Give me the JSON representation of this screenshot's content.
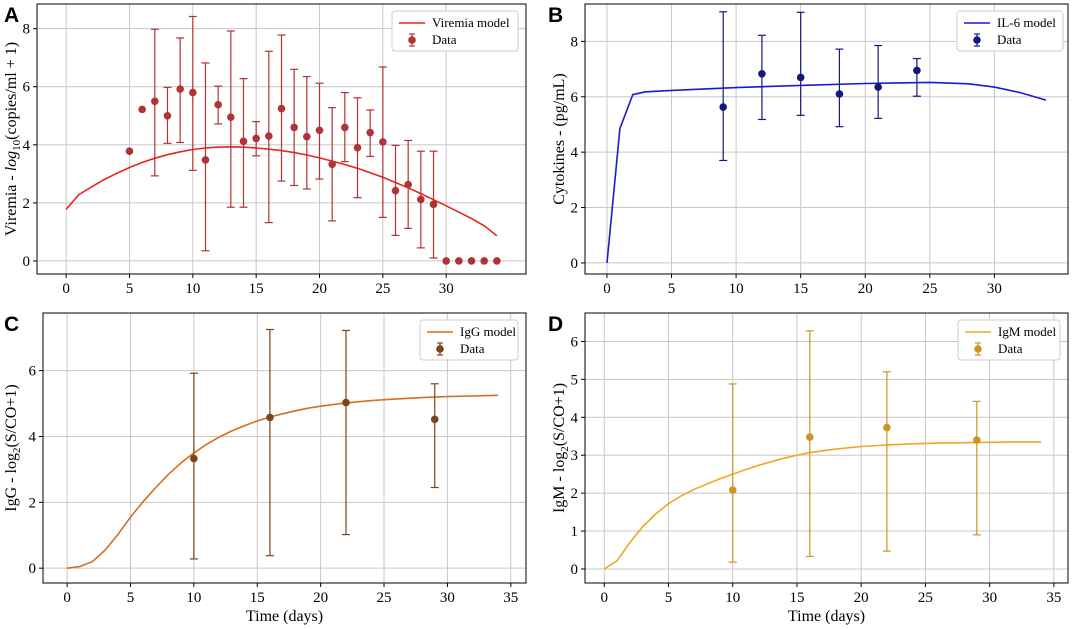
{
  "chart_data": [
    {
      "panel": "A",
      "type": "line",
      "title": "",
      "xlabel": "",
      "ylabel": "Viremia - log10(copies/ml + 1)",
      "ylabel_parts": {
        "pre": "Viremia - ",
        "italic": "log",
        "sub": "10",
        "post": "(copies/ml + 1)"
      },
      "xlim": [
        -2.3,
        36.3
      ],
      "ylim": [
        -0.45,
        8.85
      ],
      "xticks": [
        0,
        5,
        10,
        15,
        20,
        25,
        30
      ],
      "yticks": [
        0,
        2,
        4,
        6,
        8
      ],
      "xtick_labels": [
        "0",
        "5",
        "10",
        "15",
        "20",
        "25",
        "30"
      ],
      "ytick_labels": [
        "0",
        "2",
        "4",
        "6",
        "8"
      ],
      "grid": true,
      "legend_position": "top-right",
      "colors": {
        "model": "#e8261d",
        "data": "#b03437"
      },
      "model": {
        "name": "Viremia model",
        "x": [
          0,
          1,
          2,
          3,
          4,
          5,
          6,
          7,
          8,
          9,
          10,
          11,
          12,
          13,
          14,
          15,
          16,
          17,
          18,
          19,
          20,
          21,
          22,
          23,
          24,
          25,
          26,
          27,
          28,
          29,
          30,
          31,
          32,
          33,
          34
        ],
        "y": [
          1.78,
          2.28,
          2.55,
          2.8,
          3.02,
          3.22,
          3.39,
          3.54,
          3.66,
          3.76,
          3.84,
          3.89,
          3.92,
          3.93,
          3.92,
          3.89,
          3.85,
          3.8,
          3.73,
          3.65,
          3.55,
          3.44,
          3.32,
          3.19,
          3.04,
          2.88,
          2.7,
          2.52,
          2.32,
          2.11,
          1.9,
          1.68,
          1.46,
          1.21,
          0.87
        ]
      },
      "data": {
        "name": "Data",
        "x": [
          5,
          6,
          7,
          8,
          9,
          10,
          11,
          12,
          13,
          14,
          15,
          16,
          17,
          18,
          19,
          20,
          21,
          22,
          23,
          24,
          25,
          26,
          27,
          28,
          29,
          30,
          31,
          32,
          33,
          34
        ],
        "y": [
          3.78,
          5.22,
          5.5,
          5.0,
          5.92,
          5.8,
          3.48,
          5.38,
          4.95,
          4.12,
          4.22,
          4.3,
          5.25,
          4.6,
          4.28,
          4.5,
          3.33,
          4.6,
          3.9,
          4.42,
          4.1,
          2.42,
          2.63,
          2.12,
          1.95,
          0,
          0,
          0,
          0,
          0
        ],
        "yerr_low": [
          null,
          null,
          2.93,
          4.05,
          4.08,
          3.12,
          0.35,
          4.72,
          1.85,
          1.85,
          3.62,
          1.32,
          2.75,
          2.6,
          2.48,
          2.82,
          1.38,
          3.42,
          2.18,
          3.6,
          1.5,
          0.88,
          1.12,
          0.45,
          0.1,
          null,
          null,
          null,
          null,
          null
        ],
        "yerr_high": [
          null,
          null,
          7.98,
          5.98,
          7.68,
          8.42,
          6.82,
          6.02,
          7.92,
          6.28,
          4.8,
          7.22,
          7.78,
          6.6,
          6.35,
          6.12,
          5.28,
          5.8,
          5.62,
          5.2,
          6.68,
          3.98,
          4.15,
          3.78,
          3.78,
          null,
          null,
          null,
          null,
          null
        ]
      }
    },
    {
      "panel": "B",
      "type": "line",
      "title": "",
      "xlabel": "",
      "ylabel": "Cytokines - (pg/mL)",
      "xlim": [
        -1.7,
        35.7
      ],
      "ylim": [
        -0.4,
        9.35
      ],
      "xticks": [
        0,
        5,
        10,
        15,
        20,
        25,
        30
      ],
      "yticks": [
        0,
        2,
        4,
        6,
        8
      ],
      "xtick_labels": [
        "0",
        "5",
        "10",
        "15",
        "20",
        "25",
        "30"
      ],
      "ytick_labels": [
        "0",
        "2",
        "4",
        "6",
        "8"
      ],
      "grid": true,
      "legend_position": "top-right",
      "colors": {
        "model": "#1a1ad0",
        "data": "#13197a"
      },
      "model": {
        "name": "IL-6 model",
        "x": [
          0,
          1,
          2,
          3,
          5,
          10,
          15,
          20,
          25,
          28,
          30,
          32,
          34
        ],
        "y": [
          0,
          4.85,
          6.08,
          6.18,
          6.23,
          6.33,
          6.41,
          6.48,
          6.52,
          6.47,
          6.35,
          6.15,
          5.88
        ]
      },
      "data": {
        "name": "Data",
        "x": [
          9,
          12,
          15,
          18,
          21,
          24
        ],
        "y": [
          5.63,
          6.83,
          6.7,
          6.1,
          6.35,
          6.95
        ],
        "yerr_low": [
          3.7,
          5.18,
          5.33,
          4.92,
          5.22,
          6.02
        ],
        "yerr_high": [
          9.07,
          8.22,
          9.05,
          7.72,
          7.85,
          7.38
        ]
      }
    },
    {
      "panel": "C",
      "type": "line",
      "title": "",
      "xlabel": "Time (days)",
      "ylabel": "IgG - log2(S/CO+1)",
      "ylabel_parts": {
        "pre": "IgG - log",
        "sub": "2",
        "post": "(S/CO+1)"
      },
      "xlim": [
        -1.9,
        36.2
      ],
      "ylim": [
        -0.45,
        7.75
      ],
      "xticks": [
        0,
        5,
        10,
        15,
        20,
        25,
        30,
        35
      ],
      "yticks": [
        0,
        2,
        4,
        6
      ],
      "xtick_labels": [
        "0",
        "5",
        "10",
        "15",
        "20",
        "25",
        "30",
        "35"
      ],
      "ytick_labels": [
        "0",
        "2",
        "4",
        "6"
      ],
      "grid": true,
      "legend_position": "top-right",
      "colors": {
        "model": "#d56e1e",
        "data": "#7e4418"
      },
      "model": {
        "name": "IgG model",
        "x": [
          0,
          1,
          2,
          3,
          4,
          5,
          6,
          7,
          8,
          9,
          10,
          11,
          12,
          13,
          14,
          15,
          16,
          17,
          18,
          19,
          20,
          22,
          24,
          26,
          28,
          30,
          32,
          34
        ],
        "y": [
          0,
          0.05,
          0.2,
          0.55,
          1.02,
          1.55,
          2.02,
          2.45,
          2.85,
          3.2,
          3.5,
          3.76,
          3.98,
          4.17,
          4.33,
          4.47,
          4.59,
          4.69,
          4.78,
          4.86,
          4.92,
          5.02,
          5.09,
          5.14,
          5.18,
          5.21,
          5.23,
          5.25
        ]
      },
      "data": {
        "name": "Data",
        "x": [
          10,
          16,
          22,
          29
        ],
        "y": [
          3.33,
          4.58,
          5.03,
          4.52
        ],
        "yerr_low": [
          0.28,
          0.38,
          1.02,
          2.45
        ],
        "yerr_high": [
          5.92,
          7.25,
          7.22,
          5.6
        ]
      }
    },
    {
      "panel": "D",
      "type": "line",
      "title": "",
      "xlabel": "Time (days)",
      "ylabel": "IgM - log2(S/CO+1)",
      "ylabel_parts": {
        "pre": "IgM - log",
        "sub": "2",
        "post": "(S/CO+1)"
      },
      "xlim": [
        -1.5,
        36.1
      ],
      "ylim": [
        -0.37,
        6.75
      ],
      "xticks": [
        0,
        5,
        10,
        15,
        20,
        25,
        30,
        35
      ],
      "yticks": [
        0,
        1,
        2,
        3,
        4,
        5,
        6
      ],
      "xtick_labels": [
        "0",
        "5",
        "10",
        "15",
        "20",
        "25",
        "30",
        "35"
      ],
      "ytick_labels": [
        "0",
        "1",
        "2",
        "3",
        "4",
        "5",
        "6"
      ],
      "grid": true,
      "legend_position": "top-right",
      "colors": {
        "model": "#f2a622",
        "data": "#c99722"
      },
      "model": {
        "name": "IgM model",
        "x": [
          0,
          1,
          2,
          3,
          4,
          5,
          6,
          7,
          8,
          9,
          10,
          11,
          12,
          13,
          14,
          15,
          16,
          18,
          20,
          22,
          24,
          26,
          28,
          30,
          32,
          34
        ],
        "y": [
          0,
          0.22,
          0.7,
          1.12,
          1.45,
          1.72,
          1.93,
          2.1,
          2.24,
          2.38,
          2.5,
          2.62,
          2.73,
          2.83,
          2.92,
          3.0,
          3.07,
          3.16,
          3.23,
          3.27,
          3.3,
          3.32,
          3.33,
          3.34,
          3.35,
          3.35
        ]
      },
      "data": {
        "name": "Data",
        "x": [
          10,
          16,
          22,
          29
        ],
        "y": [
          2.08,
          3.48,
          3.73,
          3.4
        ],
        "yerr_low": [
          0.18,
          0.33,
          0.47,
          0.9
        ],
        "yerr_high": [
          4.88,
          6.28,
          5.2,
          4.42
        ]
      }
    }
  ]
}
